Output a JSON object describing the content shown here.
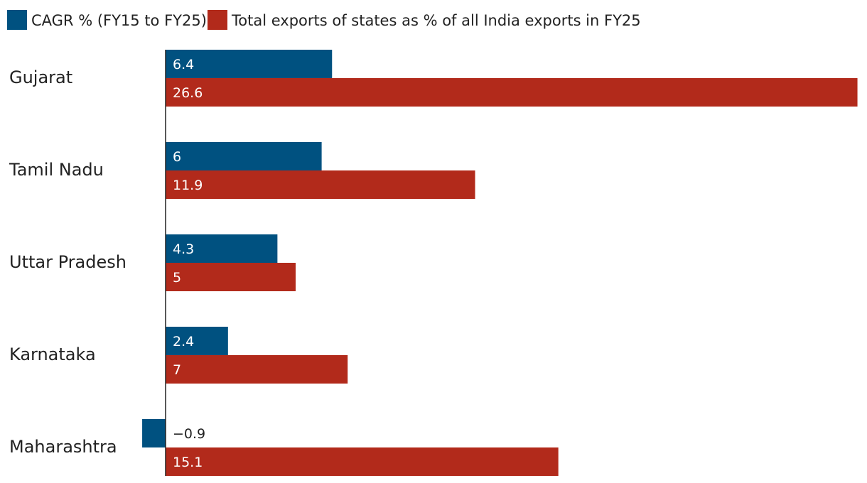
{
  "chart_data": {
    "type": "bar",
    "orientation": "horizontal",
    "categories": [
      "Gujarat",
      "Tamil Nadu",
      "Uttar Pradesh",
      "Karnataka",
      "Maharashtra"
    ],
    "series": [
      {
        "name": "CAGR % (FY15 to FY25)",
        "color": "#005180",
        "values": [
          6.4,
          6,
          4.3,
          2.4,
          -0.9
        ],
        "labels": [
          "6.4",
          "6",
          "4.3",
          "2.4",
          "−0.9"
        ]
      },
      {
        "name": "Total exports of states as % of all India exports in FY25",
        "color": "#b22a1b",
        "values": [
          26.6,
          11.9,
          5,
          7,
          15.1
        ],
        "labels": [
          "26.6",
          "11.9",
          "5",
          "7",
          "15.1"
        ]
      }
    ],
    "title": "",
    "xlabel": "",
    "ylabel": "",
    "xlim": [
      -0.9,
      26.6
    ],
    "grid": false,
    "legend_position": "top-left"
  }
}
